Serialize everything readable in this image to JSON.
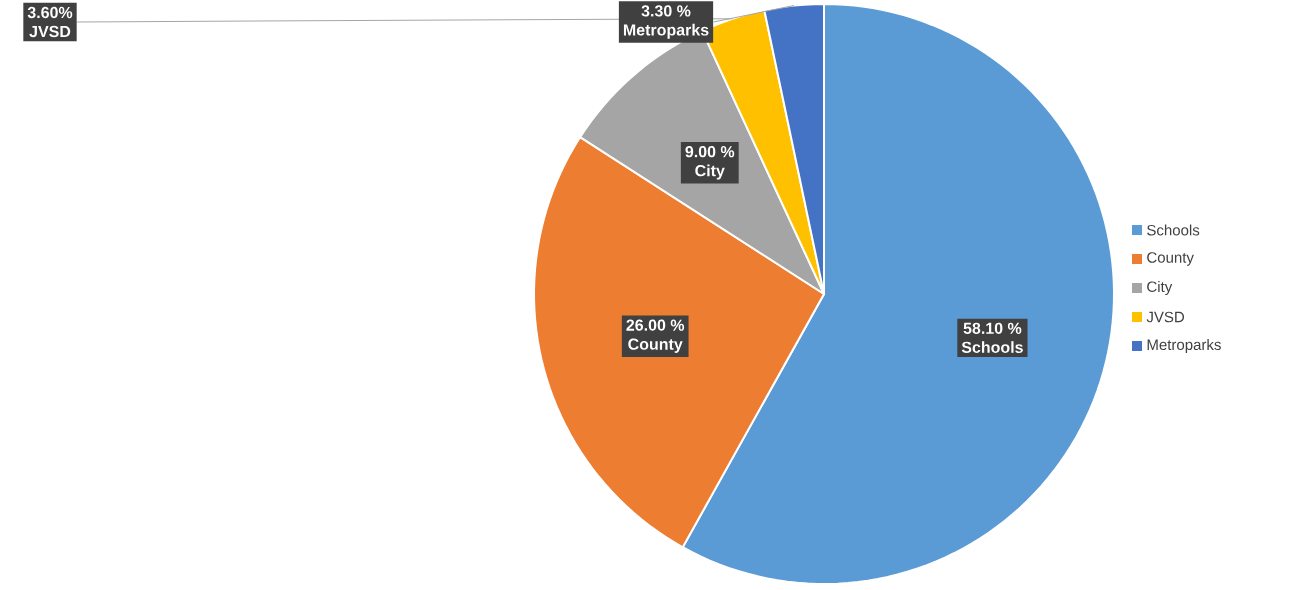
{
  "chart_data": {
    "type": "pie",
    "categories": [
      "Schools",
      "County",
      "City",
      "JVSD",
      "Metroparks"
    ],
    "values": [
      58.1,
      26.0,
      9.0,
      3.6,
      3.3
    ],
    "value_labels": [
      "58.10 %",
      "26.00 %",
      "9.00 %",
      "3.60%",
      "3.30 %"
    ],
    "colors": [
      "#5b9bd5",
      "#ed7d31",
      "#a5a5a5",
      "#ffc000",
      "#4472c4"
    ],
    "legend": "right"
  }
}
